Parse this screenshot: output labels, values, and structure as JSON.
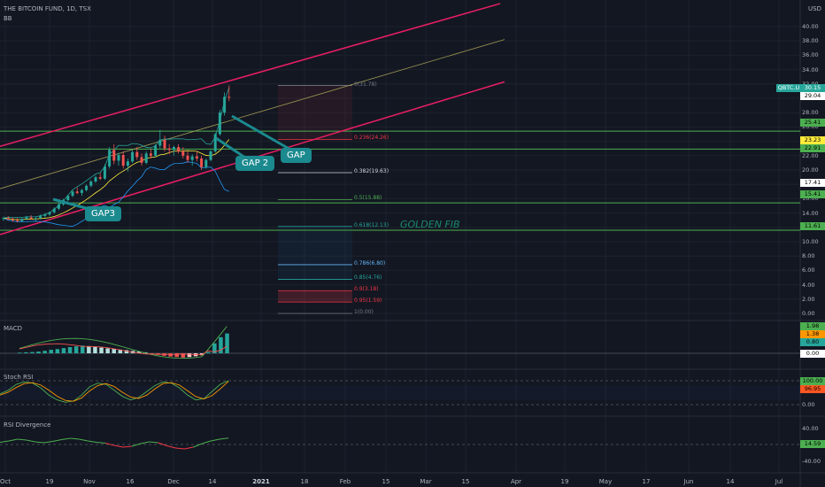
{
  "header": {
    "symbol_line": "THE BITCOIN FUND, 1D, TSX",
    "indicator": "BB",
    "currency": "USD"
  },
  "annotations": {
    "gap3": "GAP3",
    "gap2": "GAP 2",
    "gap": "GAP",
    "golden_fib": "GOLDEN FIB"
  },
  "price_badges": {
    "ticker": {
      "label": "QBTC.U",
      "value": "30.15",
      "color": "#26a69a"
    },
    "p1": {
      "value": "29.04",
      "color": "#ffffff"
    },
    "p2": {
      "value": "25.41",
      "color": "#4caf50"
    },
    "p3": {
      "value": "23.23",
      "color": "#ffeb3b"
    },
    "p4": {
      "value": "22.91",
      "color": "#4caf50"
    },
    "p5": {
      "value": "17.41",
      "color": "#ffffff"
    },
    "p6": {
      "value": "15.41",
      "color": "#4caf50"
    },
    "p7": {
      "value": "11.61",
      "color": "#4caf50"
    }
  },
  "panels": {
    "macd": {
      "title": "MACD",
      "badges": [
        "1.98",
        "1.38",
        "0.80",
        "0.00"
      ]
    },
    "stoch": {
      "title": "Stoch RSI",
      "badges": [
        "100.00",
        "96.95"
      ],
      "ticks": [
        "100.00",
        "0.00"
      ]
    },
    "rsi": {
      "title": "RSI Divergence",
      "badges": [
        "14.59"
      ],
      "ticks": [
        "40.00",
        "-40.00"
      ]
    }
  },
  "fib_levels": [
    {
      "label": "0(31.78)",
      "value": 31.78,
      "color": "#787b86"
    },
    {
      "label": "0.236(24.26)",
      "value": 24.26,
      "color": "#f23645"
    },
    {
      "label": "0.382(19.63)",
      "value": 19.63,
      "color": "#d1d4dc"
    },
    {
      "label": "0.5(15.88)",
      "value": 15.88,
      "color": "#4caf50"
    },
    {
      "label": "0.618(12.13)",
      "value": 12.13,
      "color": "#26a69a"
    },
    {
      "label": "0.786(6.80)",
      "value": 6.8,
      "color": "#64b5f6"
    },
    {
      "label": "0.85(4.76)",
      "value": 4.76,
      "color": "#26a69a"
    },
    {
      "label": "0.9(3.18)",
      "value": 3.18,
      "color": "#f23645"
    },
    {
      "label": "0.95(1.59)",
      "value": 1.59,
      "color": "#f23645"
    },
    {
      "label": "1(0.00)",
      "value": 0.0,
      "color": "#787b86"
    }
  ],
  "chart_data": {
    "type": "candlestick",
    "title": "THE BITCOIN FUND, 1D, TSX",
    "ylabel": "USD",
    "ylim": [
      -1.5,
      42
    ],
    "y_ticks": [
      "0.00",
      "2.00",
      "4.00",
      "6.00",
      "8.00",
      "10.00",
      "12.00",
      "14.00",
      "16.00",
      "18.00",
      "20.00",
      "22.00",
      "24.00",
      "26.00",
      "28.00",
      "30.00",
      "32.00",
      "34.00",
      "36.00",
      "38.00",
      "40.00"
    ],
    "x_ticks": [
      "Oct",
      "19",
      "Nov",
      "16",
      "Dec",
      "14",
      "2021",
      "18",
      "Feb",
      "15",
      "Mar",
      "15",
      "Apr",
      "19",
      "May",
      "17",
      "Jun",
      "14",
      "Jul"
    ],
    "horizontal_levels": [
      25.41,
      22.91,
      15.41,
      11.61
    ],
    "candles": [
      [
        13.2,
        13.5,
        12.9,
        13.3
      ],
      [
        13.3,
        13.6,
        13.0,
        13.1
      ],
      [
        13.1,
        13.4,
        12.8,
        13.0
      ],
      [
        13.0,
        13.3,
        12.7,
        12.9
      ],
      [
        12.9,
        13.3,
        12.7,
        13.2
      ],
      [
        13.2,
        13.6,
        13.0,
        13.4
      ],
      [
        13.4,
        13.7,
        13.1,
        13.2
      ],
      [
        13.2,
        13.5,
        12.9,
        13.3
      ],
      [
        13.3,
        13.8,
        13.1,
        13.6
      ],
      [
        13.6,
        14.0,
        13.4,
        13.8
      ],
      [
        13.8,
        14.2,
        13.6,
        14.1
      ],
      [
        14.1,
        14.8,
        13.9,
        14.6
      ],
      [
        14.6,
        15.4,
        14.4,
        15.2
      ],
      [
        15.2,
        16.0,
        15.0,
        15.8
      ],
      [
        15.8,
        16.6,
        15.6,
        16.4
      ],
      [
        16.4,
        17.2,
        16.2,
        17.0
      ],
      [
        17.0,
        17.6,
        16.6,
        16.8
      ],
      [
        16.8,
        17.4,
        16.4,
        17.2
      ],
      [
        17.2,
        18.0,
        17.0,
        17.8
      ],
      [
        17.8,
        18.6,
        17.6,
        18.4
      ],
      [
        18.4,
        19.2,
        18.2,
        19.0
      ],
      [
        19.0,
        19.6,
        18.6,
        18.8
      ],
      [
        18.8,
        20.8,
        18.6,
        20.5
      ],
      [
        20.5,
        23.2,
        20.2,
        22.8
      ],
      [
        22.8,
        23.6,
        20.8,
        21.3
      ],
      [
        21.3,
        22.4,
        20.6,
        22.1
      ],
      [
        22.1,
        22.6,
        20.2,
        20.6
      ],
      [
        20.6,
        21.6,
        19.8,
        21.2
      ],
      [
        21.2,
        22.8,
        21.0,
        22.5
      ],
      [
        22.5,
        23.2,
        21.4,
        21.8
      ],
      [
        21.8,
        22.3,
        20.6,
        21.0
      ],
      [
        21.0,
        22.6,
        20.8,
        22.3
      ],
      [
        22.3,
        23.0,
        21.6,
        22.0
      ],
      [
        22.0,
        23.6,
        21.8,
        23.4
      ],
      [
        23.4,
        25.6,
        23.0,
        24.2
      ],
      [
        24.2,
        24.8,
        22.6,
        23.0
      ],
      [
        23.0,
        23.6,
        22.2,
        22.8
      ],
      [
        22.8,
        23.4,
        22.0,
        23.2
      ],
      [
        23.2,
        23.6,
        22.3,
        22.6
      ],
      [
        22.6,
        23.2,
        21.6,
        22.0
      ],
      [
        22.0,
        22.6,
        21.0,
        21.4
      ],
      [
        21.4,
        22.2,
        20.6,
        21.9
      ],
      [
        21.9,
        22.6,
        21.2,
        21.6
      ],
      [
        21.6,
        22.0,
        20.0,
        20.4
      ],
      [
        20.4,
        21.6,
        20.2,
        21.4
      ],
      [
        21.4,
        22.8,
        21.2,
        22.6
      ],
      [
        22.6,
        25.2,
        22.4,
        25.0
      ],
      [
        25.0,
        28.4,
        24.8,
        28.0
      ],
      [
        28.0,
        30.8,
        27.6,
        30.2
      ],
      [
        30.2,
        31.8,
        29.6,
        30.15
      ]
    ],
    "macd_histogram": [
      0.05,
      0.08,
      0.1,
      0.14,
      0.2,
      0.28,
      0.34,
      0.42,
      0.5,
      0.56,
      0.62,
      0.58,
      0.52,
      0.46,
      0.4,
      0.36,
      0.3,
      0.26,
      0.2,
      0.14,
      0.08,
      -0.04,
      -0.12,
      -0.2,
      -0.26,
      -0.3,
      -0.34,
      -0.3,
      -0.24,
      -0.16,
      0.1,
      0.8,
      1.3,
      1.6
    ],
    "stoch_rsi": {
      "k": [
        45,
        60,
        85,
        95,
        90,
        70,
        40,
        20,
        10,
        15,
        40,
        75,
        90,
        85,
        60,
        35,
        20,
        30,
        55,
        80,
        95,
        90,
        70,
        40,
        20,
        25,
        55,
        85,
        100
      ],
      "d": [
        40,
        52,
        72,
        88,
        92,
        82,
        60,
        35,
        18,
        14,
        28,
        58,
        80,
        88,
        76,
        52,
        32,
        26,
        40,
        66,
        88,
        92,
        82,
        58,
        34,
        24,
        38,
        66,
        96.95
      ]
    },
    "rsi_divergence": [
      5,
      8,
      12,
      10,
      6,
      4,
      7,
      11,
      14,
      12,
      8,
      5,
      3,
      -2,
      -6,
      -4,
      2,
      6,
      4,
      -3,
      -8,
      -10,
      -6,
      2,
      8,
      12,
      14.59
    ]
  }
}
